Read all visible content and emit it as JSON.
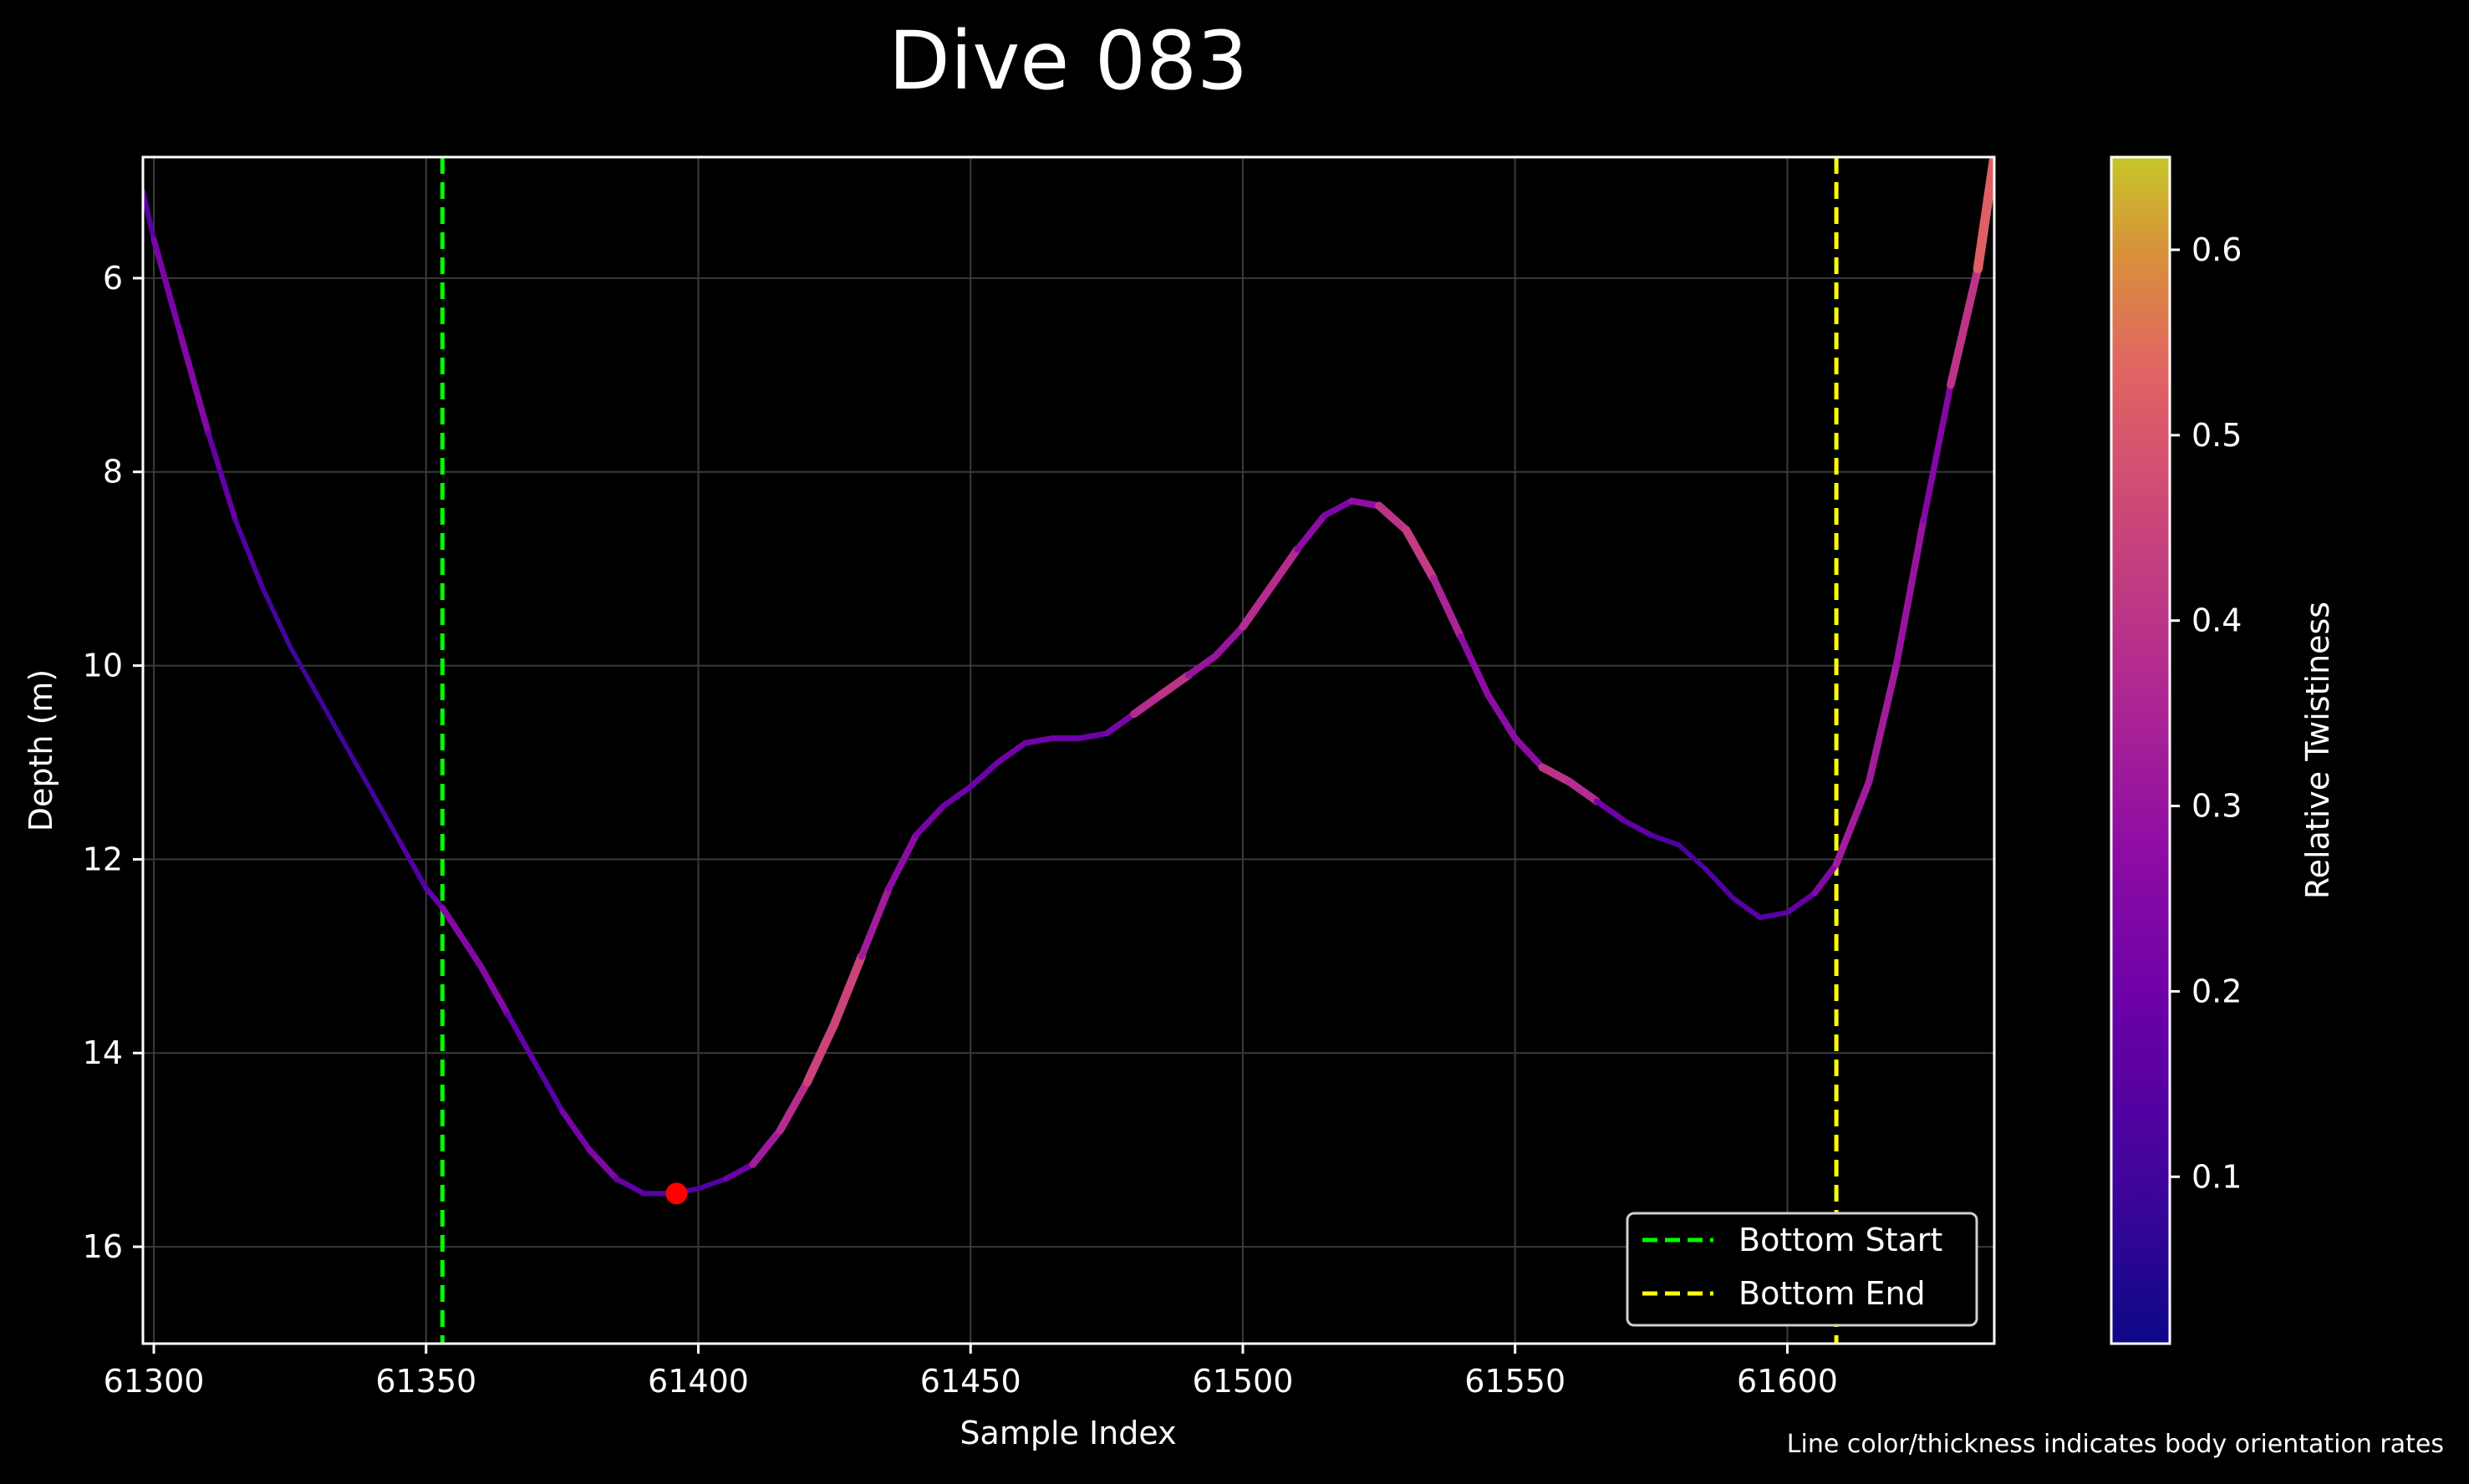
{
  "chart_data": {
    "type": "line",
    "title": "Dive 083",
    "xlabel": "Sample Index",
    "ylabel": "Depth (m)",
    "xlim": [
      61298,
      61638
    ],
    "ylim": [
      17,
      4.75
    ],
    "y_inverted": true,
    "grid": true,
    "x_ticks": [
      61300,
      61350,
      61400,
      61450,
      61500,
      61550,
      61600
    ],
    "y_ticks": [
      6,
      8,
      10,
      12,
      14,
      16
    ],
    "series": [
      {
        "x": [
          61298,
          61300,
          61305,
          61310,
          61315,
          61320,
          61325,
          61330,
          61335,
          61340,
          61345,
          61350,
          61353,
          61360,
          61365,
          61370,
          61375,
          61380,
          61385,
          61390,
          61395,
          61396,
          61400,
          61405,
          61410,
          61415,
          61420,
          61425,
          61430,
          61435,
          61440,
          61445,
          61450,
          61455,
          61460,
          61465,
          61470,
          61475,
          61480,
          61485,
          61490,
          61495,
          61500,
          61505,
          61510,
          61515,
          61520,
          61525,
          61530,
          61535,
          61540,
          61545,
          61550,
          61555,
          61560,
          61565,
          61570,
          61575,
          61580,
          61585,
          61590,
          61595,
          61600,
          61605,
          61609,
          61615,
          61620,
          61625,
          61630,
          61635,
          61638
        ],
        "y": [
          5.1,
          5.6,
          6.6,
          7.6,
          8.5,
          9.2,
          9.8,
          10.3,
          10.8,
          11.3,
          11.8,
          12.3,
          12.5,
          13.1,
          13.6,
          14.1,
          14.6,
          15.0,
          15.3,
          15.45,
          15.45,
          15.44,
          15.4,
          15.3,
          15.15,
          14.8,
          14.3,
          13.7,
          13.0,
          12.3,
          11.75,
          11.45,
          11.25,
          11.0,
          10.8,
          10.75,
          10.75,
          10.7,
          10.5,
          10.3,
          10.1,
          9.9,
          9.6,
          9.2,
          8.8,
          8.45,
          8.3,
          8.35,
          8.6,
          9.1,
          9.7,
          10.3,
          10.75,
          11.05,
          11.2,
          11.4,
          11.6,
          11.75,
          11.85,
          12.1,
          12.4,
          12.6,
          12.55,
          12.35,
          12.05,
          11.2,
          10.0,
          8.5,
          7.1,
          5.9,
          4.75
        ],
        "twistiness": [
          0.15,
          0.15,
          0.3,
          0.2,
          0.15,
          0.12,
          0.1,
          0.1,
          0.1,
          0.1,
          0.12,
          0.15,
          0.2,
          0.3,
          0.2,
          0.15,
          0.15,
          0.28,
          0.2,
          0.15,
          0.15,
          0.15,
          0.12,
          0.15,
          0.25,
          0.4,
          0.35,
          0.55,
          0.35,
          0.3,
          0.25,
          0.2,
          0.2,
          0.2,
          0.22,
          0.2,
          0.2,
          0.2,
          0.25,
          0.5,
          0.3,
          0.3,
          0.3,
          0.45,
          0.3,
          0.25,
          0.22,
          0.35,
          0.45,
          0.4,
          0.3,
          0.25,
          0.3,
          0.25,
          0.55,
          0.2,
          0.2,
          0.15,
          0.12,
          0.12,
          0.15,
          0.15,
          0.15,
          0.2,
          0.3,
          0.35,
          0.3,
          0.3,
          0.2,
          0.6,
          0.45
        ]
      }
    ],
    "max_depth_marker": {
      "x": 61396,
      "y": 15.45,
      "color": "#ff0000"
    },
    "vlines": [
      {
        "x": 61353,
        "color": "#00ff00",
        "label": "Bottom Start"
      },
      {
        "x": 61609,
        "color": "#ffff00",
        "label": "Bottom End"
      }
    ],
    "legend": {
      "placement": "bottom-right",
      "entries": [
        {
          "label": "Bottom Start",
          "color": "#00ff00"
        },
        {
          "label": "Bottom End",
          "color": "#ffff00"
        }
      ]
    },
    "colorbar": {
      "label": "Relative Twistiness",
      "colormap": "plasma",
      "range": [
        0.01,
        0.65
      ],
      "ticks": [
        0.1,
        0.2,
        0.3,
        0.4,
        0.5,
        0.6
      ]
    },
    "annotation": "Line color/thickness indicates body orientation rates"
  }
}
